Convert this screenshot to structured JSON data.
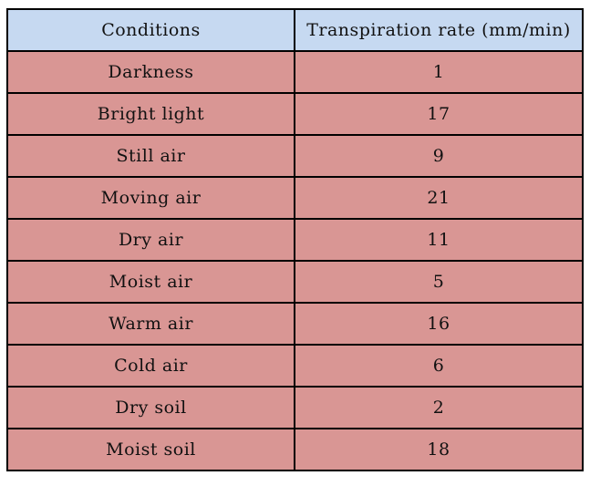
{
  "colors": {
    "header_bg": "#c6d9f1",
    "row_bg": "#d99694",
    "border": "#000000"
  },
  "chart_data": {
    "type": "table",
    "columns": [
      "Conditions",
      "Transpiration rate (mm/min)"
    ],
    "rows": [
      [
        "Darkness",
        "1"
      ],
      [
        "Bright light",
        "17"
      ],
      [
        "Still air",
        "9"
      ],
      [
        "Moving air",
        "21"
      ],
      [
        "Dry air",
        "11"
      ],
      [
        "Moist air",
        "5"
      ],
      [
        "Warm air",
        "16"
      ],
      [
        "Cold air",
        "6"
      ],
      [
        "Dry soil",
        "2"
      ],
      [
        "Moist soil",
        "18"
      ]
    ]
  }
}
